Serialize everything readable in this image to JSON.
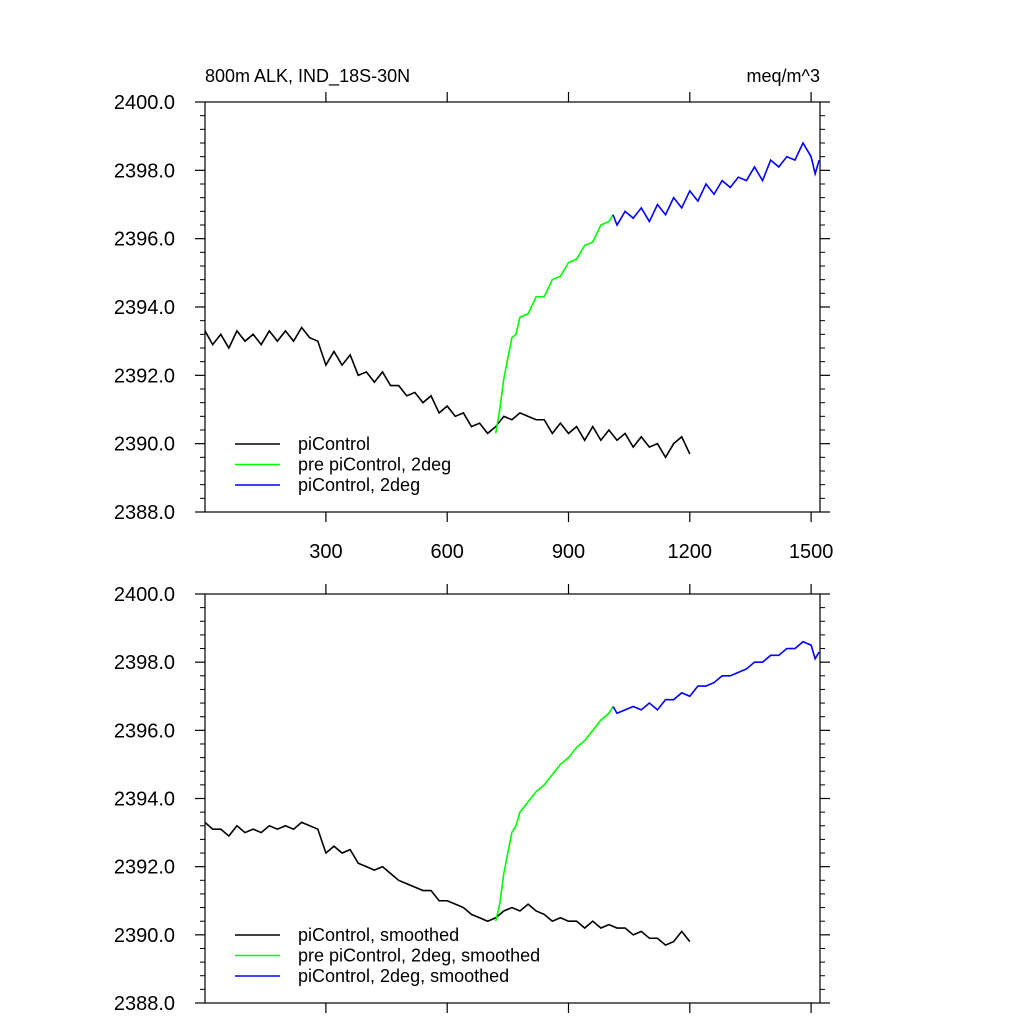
{
  "chart_data": [
    {
      "type": "line",
      "title": "800m ALK, IND_18S-30N",
      "units": "meq/m^3",
      "xlim": [
        1,
        1522
      ],
      "xticks": [
        300,
        600,
        900,
        1200,
        1500
      ],
      "ylim": [
        2388,
        2400
      ],
      "yticks": [
        {
          "value": 2388,
          "label": "2388.0"
        },
        {
          "value": 2390,
          "label": "2390.0"
        },
        {
          "value": 2392,
          "label": "2392.0"
        },
        {
          "value": 2394,
          "label": "2394.0"
        },
        {
          "value": 2396,
          "label": "2396.0"
        },
        {
          "value": 2398,
          "label": "2398.0"
        },
        {
          "value": 2400,
          "label": "2400.0"
        }
      ],
      "legend": "lower left",
      "series": [
        {
          "name": "piControl",
          "color": "#000000",
          "x": [
            1,
            20,
            40,
            60,
            80,
            100,
            120,
            140,
            160,
            180,
            200,
            220,
            240,
            260,
            280,
            300,
            320,
            340,
            360,
            380,
            400,
            420,
            440,
            460,
            480,
            500,
            520,
            540,
            560,
            580,
            600,
            620,
            640,
            660,
            680,
            700,
            720,
            740,
            760,
            780,
            800,
            820,
            840,
            860,
            880,
            900,
            920,
            940,
            960,
            980,
            1000,
            1020,
            1040,
            1060,
            1080,
            1100,
            1120,
            1140,
            1160,
            1180,
            1200
          ],
          "values": [
            2393.3,
            2392.9,
            2393.2,
            2392.8,
            2393.3,
            2393.0,
            2393.2,
            2392.9,
            2393.3,
            2393.0,
            2393.3,
            2393.0,
            2393.4,
            2393.1,
            2393.0,
            2392.3,
            2392.7,
            2392.3,
            2392.6,
            2392.0,
            2392.1,
            2391.8,
            2392.1,
            2391.7,
            2391.7,
            2391.4,
            2391.5,
            2391.2,
            2391.4,
            2390.9,
            2391.1,
            2390.8,
            2390.9,
            2390.5,
            2390.6,
            2390.3,
            2390.5,
            2390.8,
            2390.7,
            2390.9,
            2390.8,
            2390.7,
            2390.7,
            2390.3,
            2390.6,
            2390.3,
            2390.5,
            2390.1,
            2390.5,
            2390.1,
            2390.4,
            2390.1,
            2390.3,
            2389.9,
            2390.2,
            2389.9,
            2390.0,
            2389.6,
            2390.0,
            2390.2,
            2389.7
          ]
        },
        {
          "name": "pre piControl, 2deg",
          "color": "#00ff00",
          "x": [
            720,
            730,
            740,
            750,
            760,
            770,
            780,
            800,
            820,
            840,
            860,
            880,
            900,
            920,
            940,
            960,
            980,
            1000,
            1010
          ],
          "values": [
            2390.3,
            2391.0,
            2391.9,
            2392.5,
            2393.1,
            2393.2,
            2393.7,
            2393.8,
            2394.3,
            2394.3,
            2394.8,
            2394.9,
            2395.3,
            2395.4,
            2395.8,
            2395.9,
            2396.4,
            2396.5,
            2396.7
          ]
        },
        {
          "name": "piControl, 2deg",
          "color": "#0000ff",
          "x": [
            1010,
            1020,
            1040,
            1060,
            1080,
            1100,
            1120,
            1140,
            1160,
            1180,
            1200,
            1220,
            1240,
            1260,
            1280,
            1300,
            1320,
            1340,
            1360,
            1380,
            1400,
            1420,
            1440,
            1460,
            1480,
            1500,
            1510,
            1520
          ],
          "values": [
            2396.7,
            2396.4,
            2396.8,
            2396.6,
            2396.9,
            2396.5,
            2397.0,
            2396.7,
            2397.2,
            2396.9,
            2397.4,
            2397.1,
            2397.6,
            2397.3,
            2397.7,
            2397.5,
            2397.8,
            2397.7,
            2398.1,
            2397.7,
            2398.3,
            2398.1,
            2398.4,
            2398.3,
            2398.8,
            2398.4,
            2397.9,
            2398.3
          ]
        }
      ]
    },
    {
      "type": "line",
      "xlim": [
        1,
        1522
      ],
      "xticks": [
        300,
        600,
        900,
        1200,
        1500
      ],
      "ylim": [
        2388,
        2400
      ],
      "yticks": [
        {
          "value": 2388,
          "label": "2388.0"
        },
        {
          "value": 2390,
          "label": "2390.0"
        },
        {
          "value": 2392,
          "label": "2392.0"
        },
        {
          "value": 2394,
          "label": "2394.0"
        },
        {
          "value": 2396,
          "label": "2396.0"
        },
        {
          "value": 2398,
          "label": "2398.0"
        },
        {
          "value": 2400,
          "label": "2400.0"
        }
      ],
      "legend": "lower left",
      "series": [
        {
          "name": "piControl, smoothed",
          "color": "#000000",
          "x": [
            1,
            20,
            40,
            60,
            80,
            100,
            120,
            140,
            160,
            180,
            200,
            220,
            240,
            260,
            280,
            300,
            320,
            340,
            360,
            380,
            400,
            420,
            440,
            460,
            480,
            500,
            520,
            540,
            560,
            580,
            600,
            620,
            640,
            660,
            680,
            700,
            720,
            740,
            760,
            780,
            800,
            820,
            840,
            860,
            880,
            900,
            920,
            940,
            960,
            980,
            1000,
            1020,
            1040,
            1060,
            1080,
            1100,
            1120,
            1140,
            1160,
            1180,
            1200
          ],
          "values": [
            2393.3,
            2393.1,
            2393.1,
            2392.9,
            2393.2,
            2393.0,
            2393.1,
            2393.0,
            2393.2,
            2393.1,
            2393.2,
            2393.1,
            2393.3,
            2393.2,
            2393.1,
            2392.4,
            2392.6,
            2392.4,
            2392.5,
            2392.1,
            2392.0,
            2391.9,
            2392.0,
            2391.8,
            2391.6,
            2391.5,
            2391.4,
            2391.3,
            2391.3,
            2391.0,
            2391.0,
            2390.9,
            2390.8,
            2390.6,
            2390.5,
            2390.4,
            2390.5,
            2390.7,
            2390.8,
            2390.7,
            2390.9,
            2390.7,
            2390.6,
            2390.4,
            2390.5,
            2390.4,
            2390.4,
            2390.2,
            2390.4,
            2390.2,
            2390.3,
            2390.2,
            2390.2,
            2390.0,
            2390.1,
            2389.9,
            2389.9,
            2389.7,
            2389.8,
            2390.1,
            2389.8
          ]
        },
        {
          "name": "pre piControl, 2deg, smoothed",
          "color": "#00ff00",
          "x": [
            720,
            730,
            740,
            750,
            760,
            770,
            780,
            800,
            820,
            840,
            860,
            880,
            900,
            920,
            940,
            960,
            980,
            1000,
            1010
          ],
          "values": [
            2390.4,
            2390.9,
            2391.8,
            2392.4,
            2393.0,
            2393.2,
            2393.6,
            2393.9,
            2394.2,
            2394.4,
            2394.7,
            2395.0,
            2395.2,
            2395.5,
            2395.7,
            2396.0,
            2396.3,
            2396.5,
            2396.7
          ]
        },
        {
          "name": "piControl, 2deg, smoothed",
          "color": "#0000ff",
          "x": [
            1010,
            1020,
            1040,
            1060,
            1080,
            1100,
            1120,
            1140,
            1160,
            1180,
            1200,
            1220,
            1240,
            1260,
            1280,
            1300,
            1320,
            1340,
            1360,
            1380,
            1400,
            1420,
            1440,
            1460,
            1480,
            1500,
            1510,
            1520
          ],
          "values": [
            2396.7,
            2396.5,
            2396.6,
            2396.7,
            2396.6,
            2396.8,
            2396.6,
            2396.9,
            2396.9,
            2397.1,
            2397.0,
            2397.3,
            2397.3,
            2397.4,
            2397.6,
            2397.6,
            2397.7,
            2397.8,
            2398.0,
            2398.0,
            2398.2,
            2398.2,
            2398.4,
            2398.4,
            2398.6,
            2398.5,
            2398.1,
            2398.3
          ]
        }
      ]
    }
  ]
}
